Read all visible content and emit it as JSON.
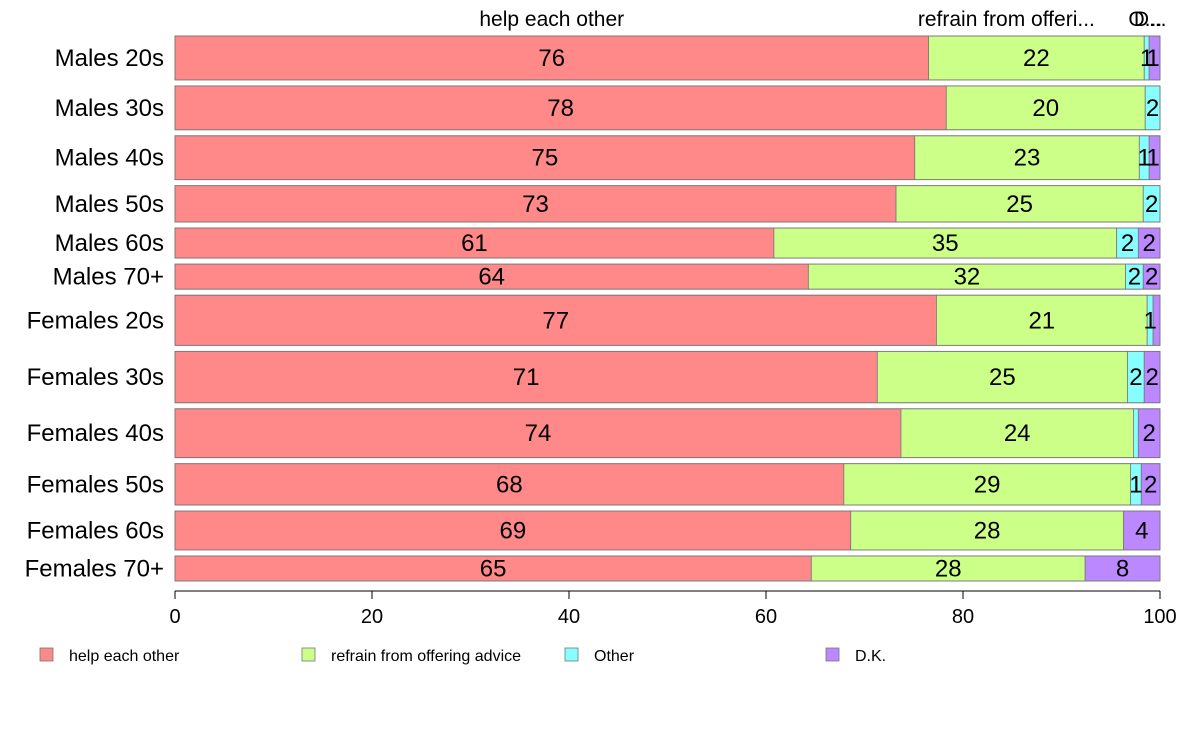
{
  "chart_data": {
    "type": "bar",
    "orientation": "horizontal",
    "stacked": true,
    "categories": [
      "Males 20s",
      "Males 30s",
      "Males 40s",
      "Males 50s",
      "Males 60s",
      "Males 70+",
      "Females 20s",
      "Females 30s",
      "Females 40s",
      "Females 50s",
      "Females 60s",
      "Females 70+"
    ],
    "category_weights": [
      1.75,
      1.75,
      1.75,
      1.45,
      1.2,
      1.0,
      2.0,
      2.05,
      1.95,
      1.65,
      1.55,
      1.0
    ],
    "series": [
      {
        "name": "help each other",
        "color": "#FF8888",
        "values": [
          76.5,
          78.3,
          75.1,
          73.2,
          60.8,
          64.3,
          77.3,
          71.3,
          73.7,
          67.9,
          68.6,
          64.6
        ],
        "labels": [
          "76",
          "78",
          "75",
          "73",
          "61",
          "64",
          "77",
          "71",
          "74",
          "68",
          "69",
          "65"
        ]
      },
      {
        "name": "refrain from offering advice",
        "color": "#CCFF88",
        "values": [
          21.9,
          20.2,
          22.8,
          25.1,
          34.8,
          32.2,
          21.4,
          25.4,
          23.6,
          29.1,
          27.7,
          27.8
        ],
        "labels": [
          "22",
          "20",
          "23",
          "25",
          "35",
          "32",
          "21",
          "25",
          "24",
          "29",
          "28",
          "28"
        ]
      },
      {
        "name": "Other",
        "color": "#88FFFF",
        "values": [
          0.5,
          1.5,
          1.0,
          1.7,
          2.2,
          1.8,
          0.6,
          1.7,
          0.5,
          1.1,
          0.0,
          0.0
        ],
        "labels": [
          "1",
          "2",
          "1",
          "2",
          "2",
          "2",
          "1",
          "2",
          "",
          "1",
          "",
          ""
        ]
      },
      {
        "name": "D.K.",
        "color": "#BB88FF",
        "values": [
          1.1,
          0.0,
          1.1,
          0.0,
          2.2,
          1.7,
          0.7,
          1.6,
          2.2,
          1.9,
          3.7,
          7.6
        ],
        "labels": [
          "1",
          "",
          "1",
          "",
          "2",
          "2",
          "",
          "2",
          "2",
          "2",
          "4",
          "8"
        ]
      }
    ],
    "top_labels": [
      "help each other",
      "refrain from offeri...",
      "O...",
      "D..."
    ],
    "xlim": [
      0,
      100
    ],
    "xticks": [
      "0",
      "20",
      "40",
      "60",
      "80",
      "100"
    ],
    "legend": {
      "position": "bottom",
      "items": [
        "help each other",
        "refrain from offering advice",
        "Other",
        "D.K."
      ]
    },
    "grid": false,
    "title": "",
    "xlabel": "",
    "ylabel": ""
  }
}
